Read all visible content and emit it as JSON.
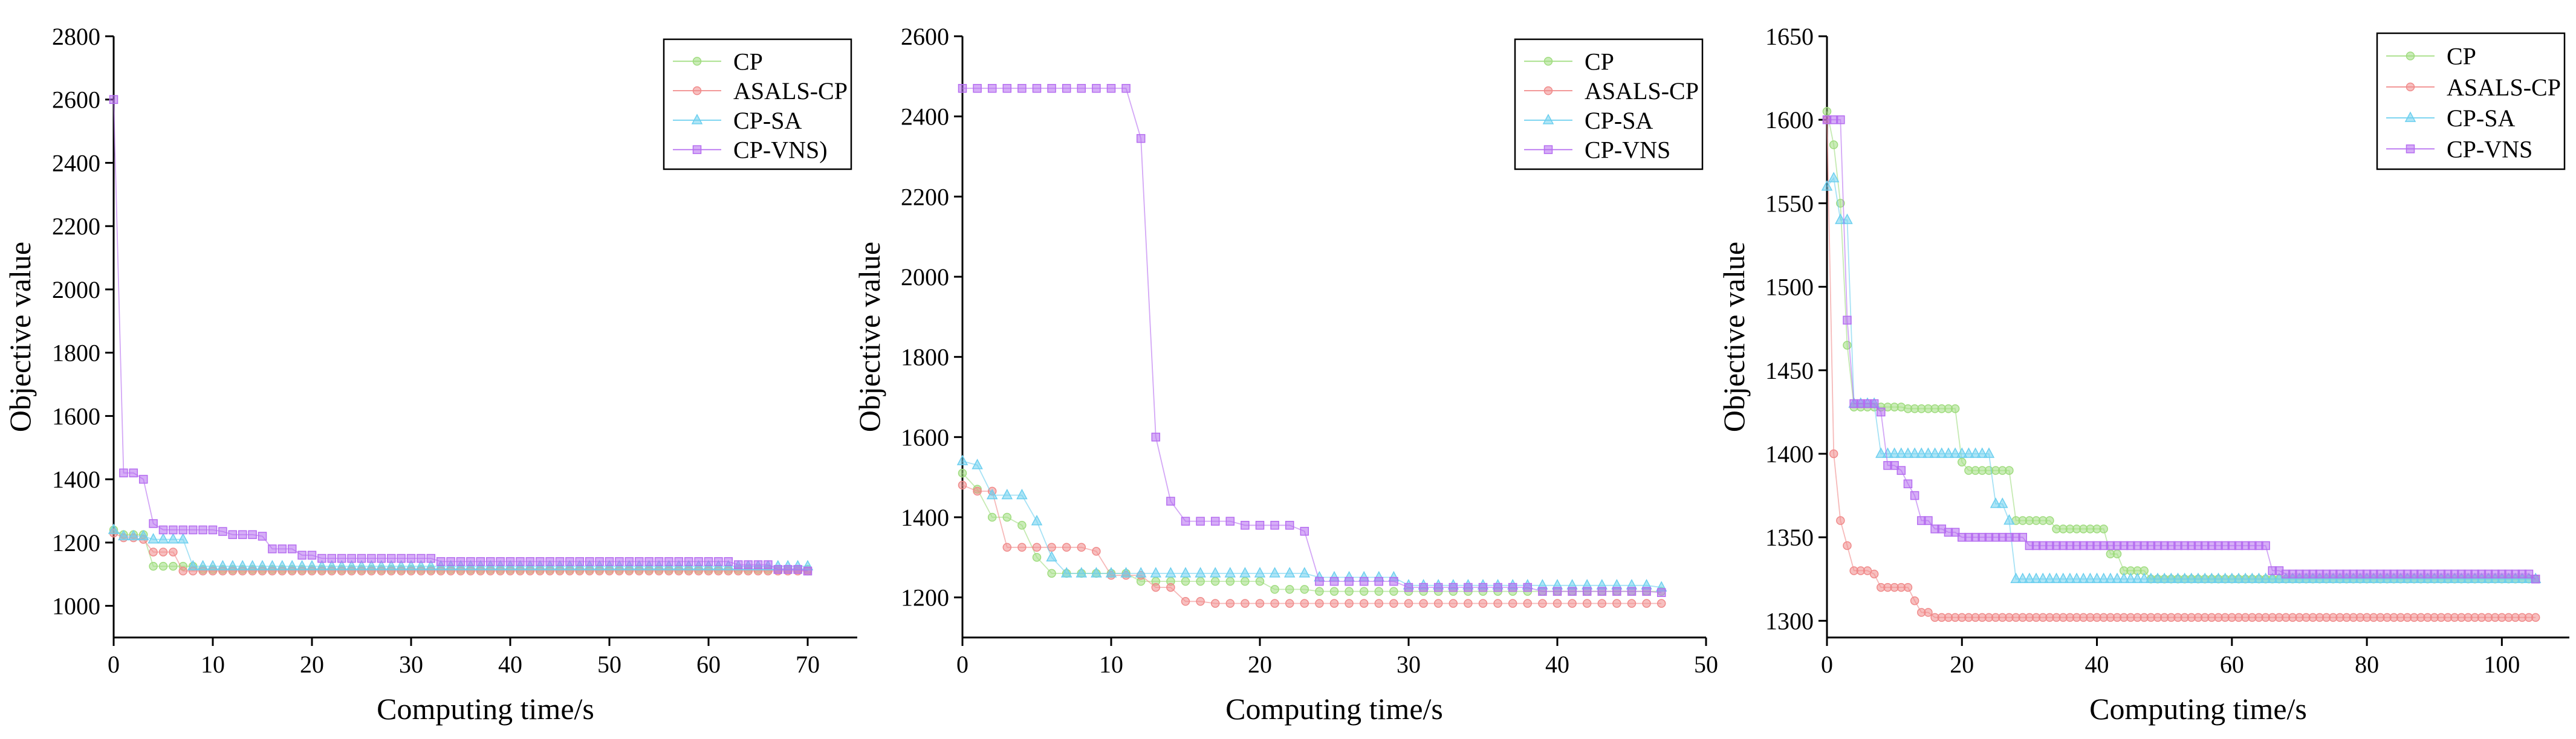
{
  "chart_data": [
    {
      "type": "line",
      "xlabel": "Computing time/s",
      "ylabel": "Objective value",
      "xlim": [
        0,
        75
      ],
      "ylim": [
        900,
        2800
      ],
      "xticks": [
        0,
        10,
        20,
        30,
        40,
        50,
        60,
        70
      ],
      "yticks": [
        1000,
        1200,
        1400,
        1600,
        1800,
        2000,
        2200,
        2400,
        2600,
        2800
      ],
      "legend_position": "top-right",
      "series": [
        {
          "name": "CP",
          "color": "#9fdc7e",
          "marker": "circle",
          "steps": [
            [
              0,
              1240
            ],
            [
              1,
              1225
            ],
            [
              4,
              1125
            ],
            [
              9,
              1115
            ],
            [
              70,
              1115
            ]
          ]
        },
        {
          "name": "ASALS-CP",
          "color": "#f08a8a",
          "marker": "circle",
          "steps": [
            [
              0,
              1230
            ],
            [
              1,
              1215
            ],
            [
              3,
              1210
            ],
            [
              4,
              1170
            ],
            [
              7,
              1110
            ],
            [
              70,
              1110
            ]
          ]
        },
        {
          "name": "CP-SA",
          "color": "#6ccfef",
          "marker": "triangle",
          "steps": [
            [
              0,
              1240
            ],
            [
              1,
              1220
            ],
            [
              4,
              1210
            ],
            [
              8,
              1125
            ],
            [
              70,
              1125
            ]
          ]
        },
        {
          "name": "CP-VNS)",
          "color": "#b56cf0",
          "marker": "square",
          "steps": [
            [
              0,
              2600
            ],
            [
              1,
              1420
            ],
            [
              3,
              1400
            ],
            [
              4,
              1260
            ],
            [
              5,
              1240
            ],
            [
              11,
              1235
            ],
            [
              12,
              1225
            ],
            [
              15,
              1220
            ],
            [
              16,
              1180
            ],
            [
              19,
              1160
            ],
            [
              21,
              1150
            ],
            [
              33,
              1140
            ],
            [
              63,
              1130
            ],
            [
              67,
              1115
            ],
            [
              70,
              1110
            ]
          ]
        }
      ]
    },
    {
      "type": "line",
      "xlabel": "Computing time/s",
      "ylabel": "Objective value",
      "xlim": [
        0,
        50
      ],
      "ylim": [
        1100,
        2600
      ],
      "xticks": [
        0,
        10,
        20,
        30,
        40,
        50
      ],
      "yticks": [
        1200,
        1400,
        1600,
        1800,
        2000,
        2200,
        2400,
        2600
      ],
      "legend_position": "top-right",
      "series": [
        {
          "name": "CP",
          "color": "#9fdc7e",
          "marker": "circle",
          "steps": [
            [
              0,
              1510
            ],
            [
              1,
              1470
            ],
            [
              2,
              1400
            ],
            [
              4,
              1380
            ],
            [
              5,
              1300
            ],
            [
              6,
              1260
            ],
            [
              12,
              1240
            ],
            [
              20,
              1240
            ],
            [
              21,
              1220
            ],
            [
              24,
              1215
            ],
            [
              47,
              1215
            ]
          ]
        },
        {
          "name": "ASALS-CP",
          "color": "#f08a8a",
          "marker": "circle",
          "steps": [
            [
              0,
              1480
            ],
            [
              1,
              1465
            ],
            [
              3,
              1325
            ],
            [
              9,
              1315
            ],
            [
              10,
              1255
            ],
            [
              13,
              1225
            ],
            [
              15,
              1190
            ],
            [
              17,
              1185
            ],
            [
              47,
              1185
            ]
          ]
        },
        {
          "name": "CP-SA",
          "color": "#6ccfef",
          "marker": "triangle",
          "steps": [
            [
              0,
              1540
            ],
            [
              1,
              1530
            ],
            [
              2,
              1455
            ],
            [
              5,
              1390
            ],
            [
              6,
              1300
            ],
            [
              7,
              1260
            ],
            [
              24,
              1250
            ],
            [
              30,
              1230
            ],
            [
              47,
              1225
            ]
          ]
        },
        {
          "name": "CP-VNS",
          "color": "#b56cf0",
          "marker": "square",
          "steps": [
            [
              0,
              2470
            ],
            [
              11,
              2470
            ],
            [
              12,
              2345
            ],
            [
              13,
              1600
            ],
            [
              14,
              1440
            ],
            [
              15,
              1390
            ],
            [
              19,
              1380
            ],
            [
              23,
              1365
            ],
            [
              24,
              1240
            ],
            [
              30,
              1225
            ],
            [
              39,
              1215
            ],
            [
              47,
              1212
            ]
          ]
        }
      ]
    },
    {
      "type": "line",
      "xlabel": "Computing time/s",
      "ylabel": "Objective value",
      "xlim": [
        0,
        110
      ],
      "ylim": [
        1290,
        1650
      ],
      "xticks": [
        0,
        20,
        40,
        60,
        80,
        100
      ],
      "yticks": [
        1300,
        1350,
        1400,
        1450,
        1500,
        1550,
        1600,
        1650
      ],
      "legend_position": "top-right",
      "series": [
        {
          "name": "CP",
          "color": "#9fdc7e",
          "marker": "circle",
          "steps": [
            [
              0,
              1605
            ],
            [
              1,
              1585
            ],
            [
              2,
              1550
            ],
            [
              3,
              1465
            ],
            [
              4,
              1428
            ],
            [
              12,
              1427
            ],
            [
              20,
              1395
            ],
            [
              21,
              1390
            ],
            [
              28,
              1360
            ],
            [
              34,
              1355
            ],
            [
              42,
              1340
            ],
            [
              44,
              1330
            ],
            [
              48,
              1325
            ],
            [
              105,
              1325
            ]
          ]
        },
        {
          "name": "ASALS-CP",
          "color": "#f08a8a",
          "marker": "circle",
          "steps": [
            [
              0,
              1600
            ],
            [
              1,
              1400
            ],
            [
              2,
              1360
            ],
            [
              3,
              1345
            ],
            [
              4,
              1330
            ],
            [
              7,
              1328
            ],
            [
              8,
              1320
            ],
            [
              13,
              1312
            ],
            [
              14,
              1305
            ],
            [
              16,
              1302
            ],
            [
              105,
              1302
            ]
          ]
        },
        {
          "name": "CP-SA",
          "color": "#6ccfef",
          "marker": "triangle",
          "steps": [
            [
              0,
              1560
            ],
            [
              1,
              1565
            ],
            [
              2,
              1540
            ],
            [
              4,
              1430
            ],
            [
              8,
              1400
            ],
            [
              25,
              1370
            ],
            [
              27,
              1360
            ],
            [
              28,
              1325
            ],
            [
              105,
              1325
            ]
          ]
        },
        {
          "name": "CP-VNS",
          "color": "#b56cf0",
          "marker": "square",
          "steps": [
            [
              0,
              1600
            ],
            [
              3,
              1480
            ],
            [
              4,
              1430
            ],
            [
              8,
              1425
            ],
            [
              9,
              1393
            ],
            [
              11,
              1390
            ],
            [
              12,
              1382
            ],
            [
              13,
              1375
            ],
            [
              14,
              1360
            ],
            [
              16,
              1355
            ],
            [
              18,
              1353
            ],
            [
              20,
              1350
            ],
            [
              30,
              1345
            ],
            [
              66,
              1330
            ],
            [
              68,
              1328
            ],
            [
              105,
              1325
            ]
          ]
        }
      ]
    }
  ]
}
